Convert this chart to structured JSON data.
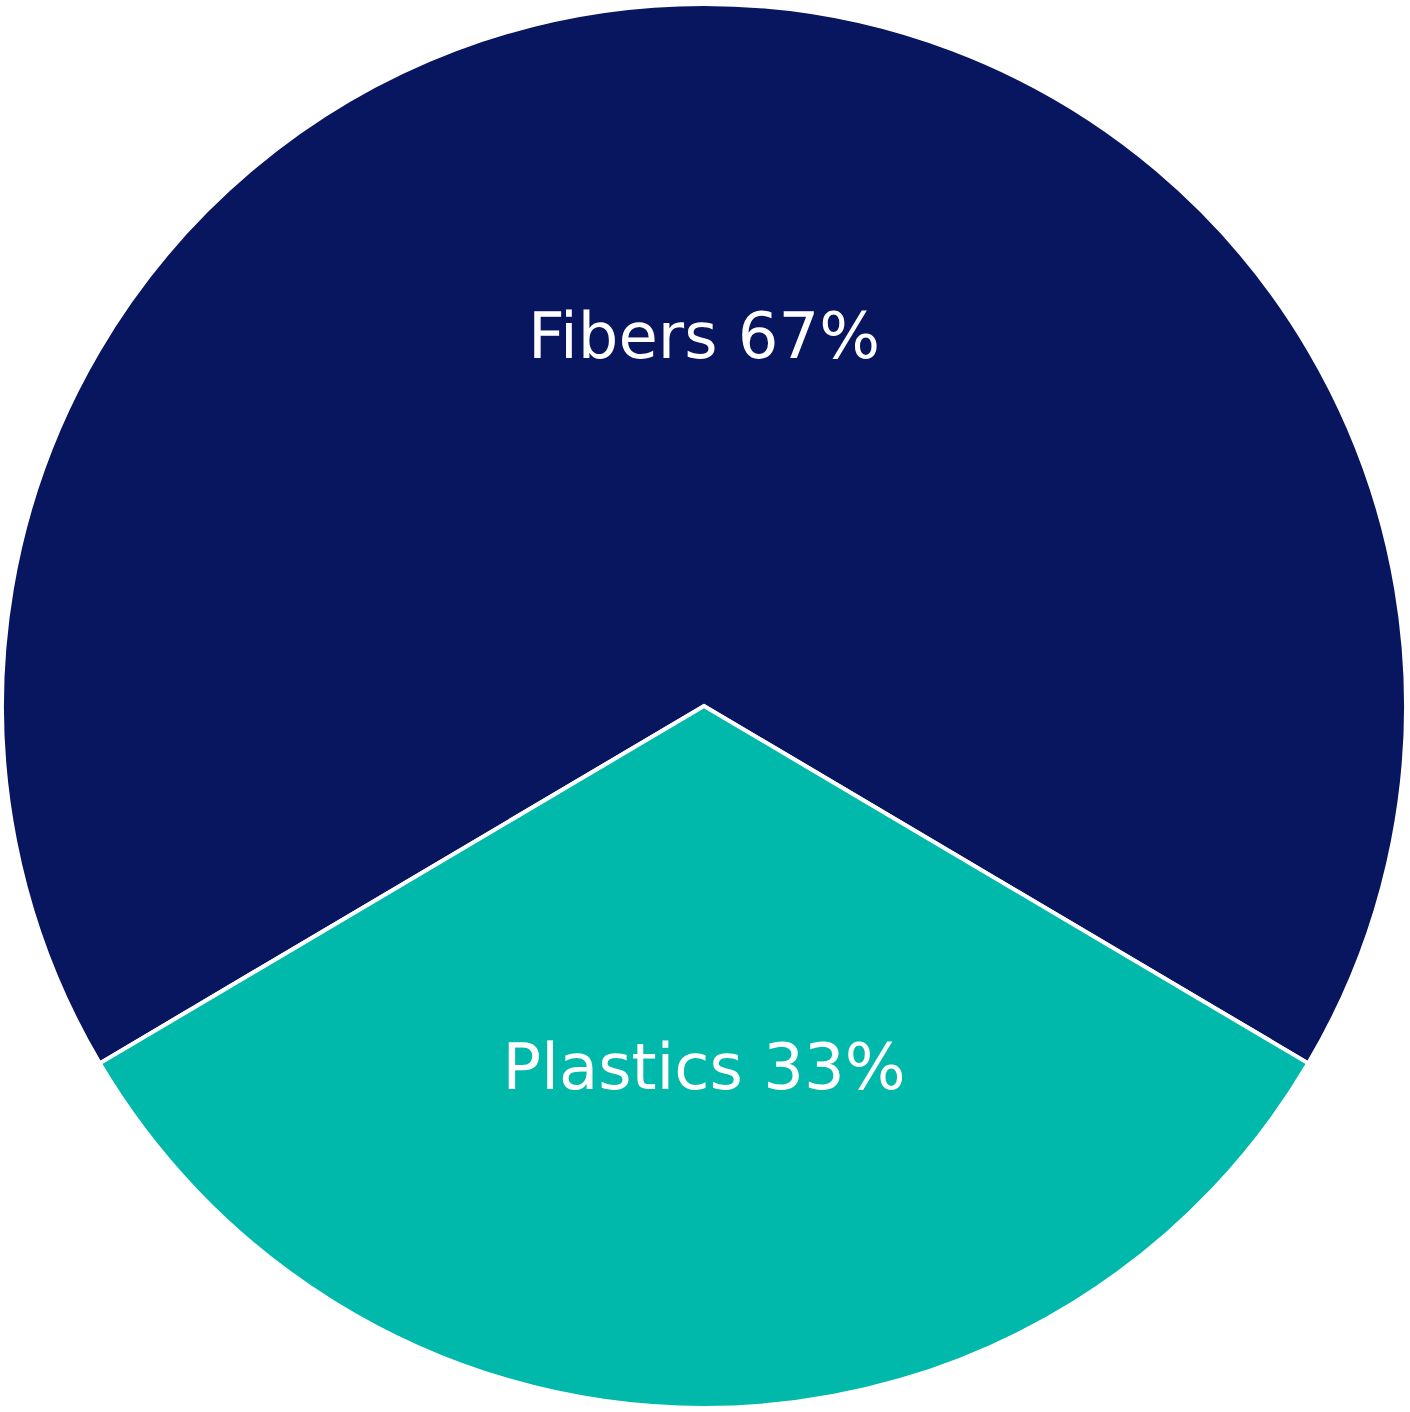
{
  "chart_data": {
    "type": "pie",
    "categories": [
      "Fibers",
      "Plastics"
    ],
    "values": [
      67,
      33
    ],
    "colors": [
      "#08155f",
      "#00b9ab"
    ],
    "value_labels": [
      "67%",
      "33%"
    ]
  }
}
